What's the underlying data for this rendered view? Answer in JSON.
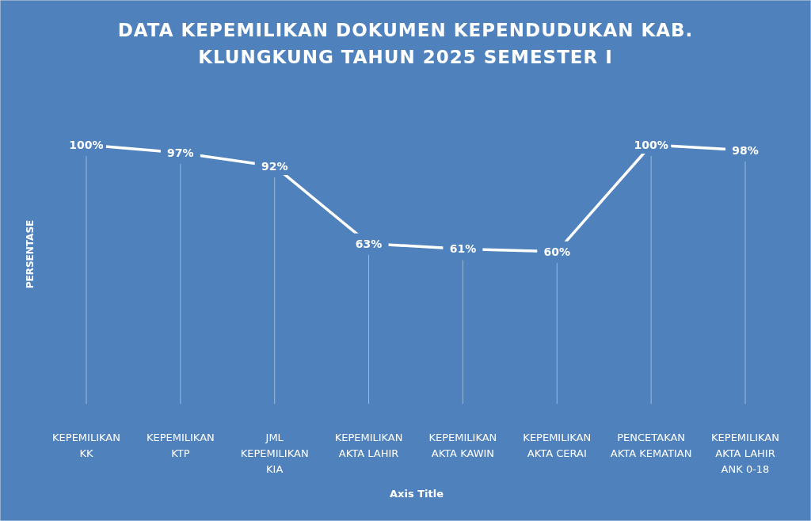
{
  "chart_data": {
    "type": "line",
    "title": "DATA KEPEMILIKAN DOKUMEN KEPENDUDUKAN KAB. KLUNGKUNG TAHUN 2025 SEMESTER I",
    "categories": [
      "KEPEMILIKAN KK",
      "KEPEMILIKAN KTP",
      "JML KEPEMILIKAN KIA",
      "KEPEMILIKAN AKTA LAHIR",
      "KEPEMILIKAN AKTA KAWIN",
      "KEPEMILIKAN AKTA CERAI",
      "PENCETAKAN AKTA KEMATIAN",
      "KEPEMILIKAN AKTA LAHIR ANK 0-18"
    ],
    "series": [
      {
        "color": "#ffffff",
        "values": [
          100,
          97,
          92,
          63,
          61,
          60,
          100,
          98
        ],
        "value_labels": [
          "100%",
          "97%",
          "92%",
          "63%",
          "61%",
          "60%",
          "100%",
          "98%"
        ]
      }
    ],
    "grid": "x",
    "ylabel": "PERSENTASE",
    "xlabel": "Axis Title",
    "line_style": "solid"
  }
}
